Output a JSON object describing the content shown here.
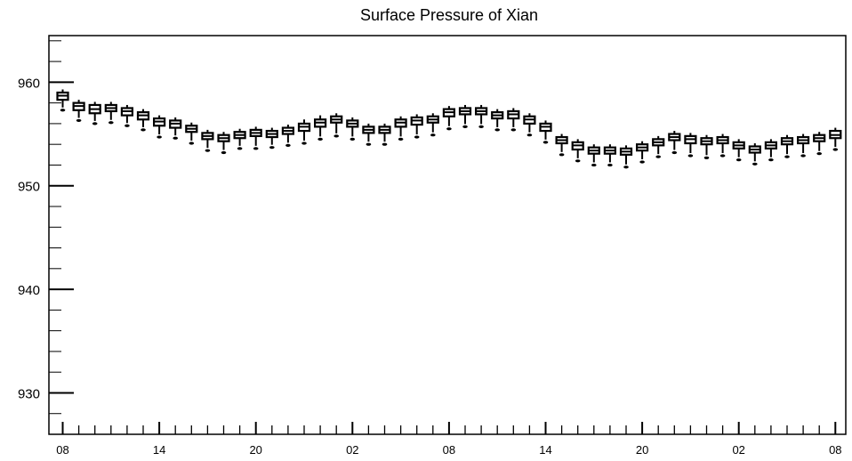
{
  "chart_data": {
    "type": "box",
    "title": "Surface Pressure of Xian",
    "xlabel": "",
    "ylabel": "",
    "ylim": [
      926,
      964.5
    ],
    "yticks": [
      930,
      940,
      950,
      960
    ],
    "xtick_labels": [
      "08",
      "14",
      "20",
      "02",
      "08",
      "14",
      "20",
      "02",
      "08"
    ],
    "x_positions_hours": [
      0,
      6,
      12,
      18,
      24,
      30,
      36,
      42,
      48
    ],
    "grid": false,
    "boxes": [
      {
        "hour": 0,
        "min": 957.3,
        "q1": 958.3,
        "median": 958.7,
        "q3": 959.0,
        "max": 959.3
      },
      {
        "hour": 1,
        "min": 956.3,
        "q1": 957.3,
        "median": 957.7,
        "q3": 958.0,
        "max": 958.3
      },
      {
        "hour": 2,
        "min": 956.0,
        "q1": 957.0,
        "median": 957.4,
        "q3": 957.8,
        "max": 958.1
      },
      {
        "hour": 3,
        "min": 956.1,
        "q1": 957.2,
        "median": 957.5,
        "q3": 957.8,
        "max": 958.1
      },
      {
        "hour": 4,
        "min": 955.8,
        "q1": 956.8,
        "median": 957.2,
        "q3": 957.5,
        "max": 957.8
      },
      {
        "hour": 5,
        "min": 955.4,
        "q1": 956.4,
        "median": 956.8,
        "q3": 957.1,
        "max": 957.4
      },
      {
        "hour": 6,
        "min": 954.7,
        "q1": 955.8,
        "median": 956.2,
        "q3": 956.5,
        "max": 956.8
      },
      {
        "hour": 7,
        "min": 954.6,
        "q1": 955.6,
        "median": 956.0,
        "q3": 956.3,
        "max": 956.6
      },
      {
        "hour": 8,
        "min": 954.1,
        "q1": 955.2,
        "median": 955.5,
        "q3": 955.8,
        "max": 956.1
      },
      {
        "hour": 9,
        "min": 953.4,
        "q1": 954.5,
        "median": 954.8,
        "q3": 955.1,
        "max": 955.4
      },
      {
        "hour": 10,
        "min": 953.2,
        "q1": 954.3,
        "median": 954.6,
        "q3": 954.9,
        "max": 955.2
      },
      {
        "hour": 11,
        "min": 953.6,
        "q1": 954.6,
        "median": 954.9,
        "q3": 955.2,
        "max": 955.5
      },
      {
        "hour": 12,
        "min": 953.6,
        "q1": 954.8,
        "median": 955.1,
        "q3": 955.4,
        "max": 955.7
      },
      {
        "hour": 13,
        "min": 953.7,
        "q1": 954.7,
        "median": 955.0,
        "q3": 955.3,
        "max": 955.6
      },
      {
        "hour": 14,
        "min": 953.9,
        "q1": 955.0,
        "median": 955.3,
        "q3": 955.6,
        "max": 955.9
      },
      {
        "hour": 15,
        "min": 954.1,
        "q1": 955.3,
        "median": 955.7,
        "q3": 956.0,
        "max": 956.4
      },
      {
        "hour": 16,
        "min": 954.5,
        "q1": 955.7,
        "median": 956.1,
        "q3": 956.4,
        "max": 956.8
      },
      {
        "hour": 17,
        "min": 954.8,
        "q1": 956.1,
        "median": 956.4,
        "q3": 956.7,
        "max": 957.0
      },
      {
        "hour": 18,
        "min": 954.5,
        "q1": 955.7,
        "median": 956.0,
        "q3": 956.3,
        "max": 956.6
      },
      {
        "hour": 19,
        "min": 954.0,
        "q1": 955.1,
        "median": 955.4,
        "q3": 955.7,
        "max": 956.0
      },
      {
        "hour": 20,
        "min": 954.0,
        "q1": 955.1,
        "median": 955.4,
        "q3": 955.7,
        "max": 956.0
      },
      {
        "hour": 21,
        "min": 954.5,
        "q1": 955.7,
        "median": 956.1,
        "q3": 956.4,
        "max": 956.7
      },
      {
        "hour": 22,
        "min": 954.7,
        "q1": 955.9,
        "median": 956.3,
        "q3": 956.6,
        "max": 956.9
      },
      {
        "hour": 23,
        "min": 954.9,
        "q1": 956.1,
        "median": 956.4,
        "q3": 956.7,
        "max": 957.0
      },
      {
        "hour": 24,
        "min": 955.5,
        "q1": 956.7,
        "median": 957.1,
        "q3": 957.4,
        "max": 957.7
      },
      {
        "hour": 25,
        "min": 955.7,
        "q1": 956.9,
        "median": 957.2,
        "q3": 957.5,
        "max": 957.8
      },
      {
        "hour": 26,
        "min": 955.7,
        "q1": 956.9,
        "median": 957.2,
        "q3": 957.5,
        "max": 957.8
      },
      {
        "hour": 27,
        "min": 955.4,
        "q1": 956.5,
        "median": 956.8,
        "q3": 957.1,
        "max": 957.4
      },
      {
        "hour": 28,
        "min": 955.4,
        "q1": 956.5,
        "median": 956.9,
        "q3": 957.2,
        "max": 957.5
      },
      {
        "hour": 29,
        "min": 954.9,
        "q1": 956.0,
        "median": 956.4,
        "q3": 956.7,
        "max": 957.0
      },
      {
        "hour": 30,
        "min": 954.2,
        "q1": 955.3,
        "median": 955.7,
        "q3": 956.0,
        "max": 956.3
      },
      {
        "hour": 31,
        "min": 953.0,
        "q1": 954.1,
        "median": 954.4,
        "q3": 954.7,
        "max": 955.0
      },
      {
        "hour": 32,
        "min": 952.4,
        "q1": 953.5,
        "median": 953.9,
        "q3": 954.2,
        "max": 954.5
      },
      {
        "hour": 33,
        "min": 952.0,
        "q1": 953.1,
        "median": 953.4,
        "q3": 953.7,
        "max": 954.0
      },
      {
        "hour": 34,
        "min": 952.0,
        "q1": 953.1,
        "median": 953.4,
        "q3": 953.7,
        "max": 954.0
      },
      {
        "hour": 35,
        "min": 951.8,
        "q1": 953.0,
        "median": 953.3,
        "q3": 953.6,
        "max": 953.9
      },
      {
        "hour": 36,
        "min": 952.3,
        "q1": 953.4,
        "median": 953.7,
        "q3": 954.0,
        "max": 954.3
      },
      {
        "hour": 37,
        "min": 952.8,
        "q1": 953.9,
        "median": 954.2,
        "q3": 954.5,
        "max": 954.8
      },
      {
        "hour": 38,
        "min": 953.2,
        "q1": 954.4,
        "median": 954.7,
        "q3": 955.0,
        "max": 955.3
      },
      {
        "hour": 39,
        "min": 952.9,
        "q1": 954.1,
        "median": 954.5,
        "q3": 954.8,
        "max": 955.1
      },
      {
        "hour": 40,
        "min": 952.7,
        "q1": 954.0,
        "median": 954.3,
        "q3": 954.6,
        "max": 954.9
      },
      {
        "hour": 41,
        "min": 952.9,
        "q1": 954.1,
        "median": 954.4,
        "q3": 954.7,
        "max": 955.0
      },
      {
        "hour": 42,
        "min": 952.5,
        "q1": 953.6,
        "median": 953.9,
        "q3": 954.2,
        "max": 954.5
      },
      {
        "hour": 43,
        "min": 952.1,
        "q1": 953.2,
        "median": 953.5,
        "q3": 953.8,
        "max": 954.1
      },
      {
        "hour": 44,
        "min": 952.5,
        "q1": 953.6,
        "median": 953.9,
        "q3": 954.2,
        "max": 954.5
      },
      {
        "hour": 45,
        "min": 952.8,
        "q1": 954.0,
        "median": 954.3,
        "q3": 954.6,
        "max": 954.9
      },
      {
        "hour": 46,
        "min": 952.9,
        "q1": 954.1,
        "median": 954.4,
        "q3": 954.7,
        "max": 955.0
      },
      {
        "hour": 47,
        "min": 953.1,
        "q1": 954.3,
        "median": 954.6,
        "q3": 954.9,
        "max": 955.2
      },
      {
        "hour": 48,
        "min": 953.5,
        "q1": 954.6,
        "median": 954.9,
        "q3": 955.3,
        "max": 955.6
      }
    ]
  }
}
